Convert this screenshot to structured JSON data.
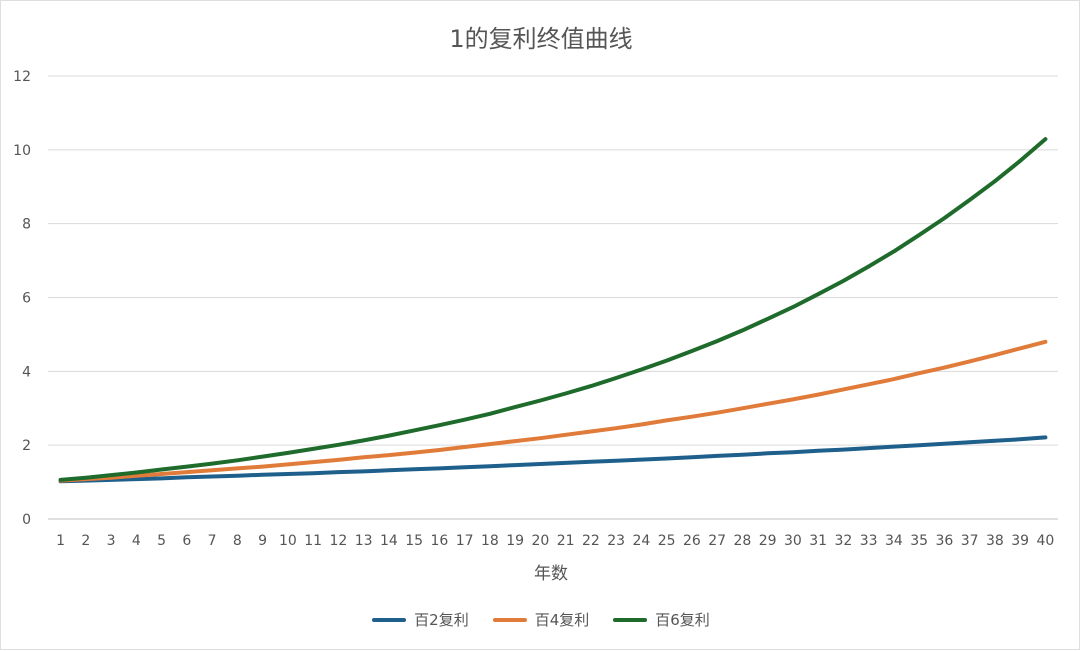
{
  "chart_data": {
    "type": "line",
    "title": "1的复利终值曲线",
    "xlabel": "年数",
    "ylabel": "",
    "x": [
      1,
      2,
      3,
      4,
      5,
      6,
      7,
      8,
      9,
      10,
      11,
      12,
      13,
      14,
      15,
      16,
      17,
      18,
      19,
      20,
      21,
      22,
      23,
      24,
      25,
      26,
      27,
      28,
      29,
      30,
      31,
      32,
      33,
      34,
      35,
      36,
      37,
      38,
      39,
      40
    ],
    "ylim": [
      0,
      12
    ],
    "yticks": [
      0,
      2,
      4,
      6,
      8,
      10,
      12
    ],
    "grid": true,
    "legend_position": "bottom",
    "series": [
      {
        "name": "百2复利",
        "color": "#1f5f8b",
        "values": [
          1.02,
          1.04,
          1.06,
          1.08,
          1.1,
          1.13,
          1.15,
          1.17,
          1.2,
          1.22,
          1.24,
          1.27,
          1.29,
          1.32,
          1.35,
          1.37,
          1.4,
          1.43,
          1.46,
          1.49,
          1.52,
          1.55,
          1.58,
          1.61,
          1.64,
          1.67,
          1.71,
          1.74,
          1.78,
          1.81,
          1.85,
          1.88,
          1.92,
          1.96,
          2.0,
          2.04,
          2.08,
          2.12,
          2.16,
          2.21
        ]
      },
      {
        "name": "百4复利",
        "color": "#e07b39",
        "values": [
          1.04,
          1.08,
          1.12,
          1.17,
          1.22,
          1.27,
          1.32,
          1.37,
          1.42,
          1.48,
          1.54,
          1.6,
          1.67,
          1.73,
          1.8,
          1.87,
          1.95,
          2.03,
          2.11,
          2.19,
          2.28,
          2.37,
          2.46,
          2.56,
          2.67,
          2.77,
          2.88,
          3.0,
          3.12,
          3.24,
          3.37,
          3.51,
          3.65,
          3.79,
          3.95,
          4.1,
          4.27,
          4.44,
          4.62,
          4.8
        ]
      },
      {
        "name": "百6复利",
        "color": "#1e6b2c",
        "values": [
          1.06,
          1.12,
          1.19,
          1.26,
          1.34,
          1.42,
          1.5,
          1.59,
          1.69,
          1.79,
          1.9,
          2.01,
          2.13,
          2.26,
          2.4,
          2.54,
          2.69,
          2.85,
          3.03,
          3.21,
          3.4,
          3.6,
          3.82,
          4.05,
          4.29,
          4.55,
          4.82,
          5.11,
          5.42,
          5.74,
          6.09,
          6.45,
          6.84,
          7.25,
          7.69,
          8.15,
          8.64,
          9.15,
          9.7,
          10.29
        ]
      }
    ]
  }
}
